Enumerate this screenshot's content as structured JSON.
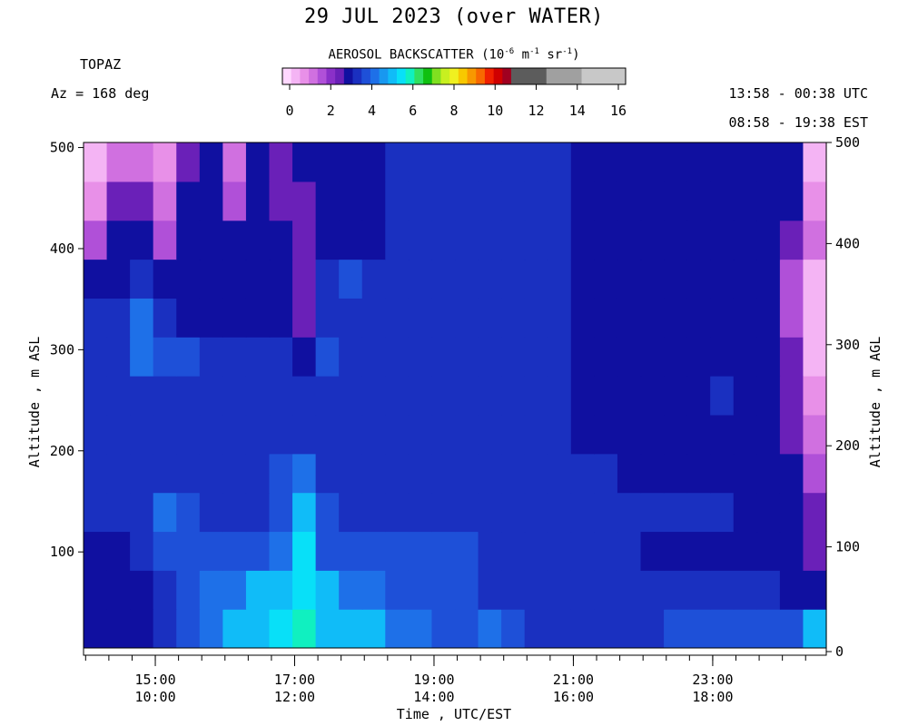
{
  "header": {
    "title": "29 JUL 2023 (over WATER)",
    "site": "TOPAZ",
    "azimuth": "Az = 168 deg",
    "utc_range": "13:58 - 00:38 UTC",
    "est_range": "08:58 - 19:38 EST"
  },
  "colorbar": {
    "title_main": "AEROSOL BACKSCATTER (10",
    "title_exp1": "-6",
    "title_mid": " m",
    "title_exp2": "-1",
    "title_mid2": " sr",
    "title_exp3": "-1",
    "title_end": ")",
    "ticks": [
      "0",
      "2",
      "4",
      "6",
      "8",
      "10",
      "12",
      "14",
      "16"
    ],
    "range": [
      0,
      16
    ],
    "colors": [
      "#ffd8ff",
      "#f4b4f4",
      "#e890e8",
      "#d070e0",
      "#b050d8",
      "#8a30c8",
      "#6a20b8",
      "#1010a0",
      "#1a30c0",
      "#1e50d8",
      "#1e70e8",
      "#1898f0",
      "#10bcf8",
      "#08e0f8",
      "#10f0c0",
      "#30e060",
      "#10c010",
      "#80e020",
      "#c8f020",
      "#f0f020",
      "#f8c800",
      "#f89800",
      "#f86800",
      "#f02000",
      "#d00000",
      "#a00020",
      "#5c5c5c",
      "#5c5c5c",
      "#5c5c5c",
      "#5c5c5c",
      "#a0a0a0",
      "#a0a0a0",
      "#a0a0a0",
      "#a0a0a0",
      "#c8c8c8",
      "#c8c8c8",
      "#c8c8c8",
      "#c8c8c8",
      "#c8c8c8"
    ]
  },
  "chart_data": {
    "type": "heatmap",
    "title": "29 JUL 2023 (over WATER)",
    "xlabel": "Time , UTC/EST",
    "ylabel_left": "Altitude , m ASL",
    "ylabel_right": "Altitude , m AGL",
    "x_ticks_utc": [
      "15:00",
      "17:00",
      "19:00",
      "21:00",
      "23:00"
    ],
    "x_ticks_est": [
      "10:00",
      "12:00",
      "14:00",
      "16:00",
      "18:00"
    ],
    "x_tick_hours": [
      15,
      17,
      19,
      21,
      23
    ],
    "x_range_hours": [
      13.97,
      24.63
    ],
    "y_ticks_left": [
      "100",
      "200",
      "300",
      "400",
      "500"
    ],
    "y_ticks_right": [
      "0",
      "100",
      "200",
      "300",
      "400",
      "500"
    ],
    "y_range_m": [
      5,
      505
    ],
    "value_units": "10^-6 m^-1 sr^-1",
    "time_columns_utc": [
      "13:59",
      "14:18",
      "14:38",
      "14:58",
      "15:18",
      "15:38",
      "15:58",
      "16:18",
      "16:38",
      "16:58",
      "17:18",
      "17:38",
      "17:58",
      "18:18",
      "18:38",
      "18:58",
      "19:18",
      "19:38",
      "19:58",
      "20:18",
      "20:38",
      "20:58",
      "21:18",
      "21:38",
      "21:58",
      "22:18",
      "22:38",
      "22:58",
      "23:18",
      "23:38",
      "23:58",
      "00:18"
    ],
    "altitude_bins_m": [
      20,
      60,
      100,
      140,
      180,
      220,
      260,
      300,
      340,
      380,
      420,
      460,
      500
    ],
    "values": [
      [
        3.0,
        3.0,
        3.0,
        3.5,
        4.0,
        4.5,
        5.0,
        5.0,
        5.5,
        6.0,
        5.0,
        5.0,
        5.0,
        4.5,
        4.5,
        4.0,
        4.0,
        4.5,
        4.0,
        3.5,
        3.5,
        3.5,
        3.5,
        3.5,
        3.5,
        4.0,
        4.0,
        4.0,
        4.0,
        4.0,
        4.0,
        5.0
      ],
      [
        3.0,
        3.0,
        3.0,
        3.5,
        4.0,
        4.5,
        4.5,
        5.0,
        5.0,
        5.5,
        5.0,
        4.5,
        4.5,
        4.0,
        4.0,
        4.0,
        4.0,
        3.5,
        3.5,
        3.5,
        3.5,
        3.5,
        3.5,
        3.5,
        3.5,
        3.5,
        3.5,
        3.5,
        3.5,
        3.5,
        3.0,
        3.0
      ],
      [
        3.0,
        3.0,
        3.5,
        4.0,
        4.0,
        4.0,
        4.0,
        4.0,
        4.5,
        5.5,
        4.0,
        4.0,
        4.0,
        4.0,
        4.0,
        4.0,
        4.0,
        3.5,
        3.5,
        3.5,
        3.5,
        3.5,
        3.5,
        3.5,
        3.0,
        3.0,
        3.0,
        3.0,
        3.0,
        3.0,
        3.0,
        2.5
      ],
      [
        3.5,
        3.5,
        3.5,
        4.5,
        4.0,
        3.5,
        3.5,
        3.5,
        4.0,
        5.0,
        4.0,
        3.5,
        3.5,
        3.5,
        3.5,
        3.5,
        3.5,
        3.5,
        3.5,
        3.5,
        3.5,
        3.5,
        3.5,
        3.5,
        3.5,
        3.5,
        3.5,
        3.5,
        3.0,
        3.0,
        3.0,
        2.5
      ],
      [
        3.5,
        3.5,
        3.5,
        3.5,
        3.5,
        3.5,
        3.5,
        3.5,
        4.0,
        4.5,
        3.5,
        3.5,
        3.5,
        3.5,
        3.5,
        3.5,
        3.5,
        3.5,
        3.5,
        3.5,
        3.5,
        3.5,
        3.5,
        3.0,
        3.0,
        3.0,
        3.0,
        3.0,
        3.0,
        3.0,
        3.0,
        2.0
      ],
      [
        3.5,
        3.5,
        3.5,
        3.5,
        3.5,
        3.5,
        3.5,
        3.5,
        3.5,
        3.5,
        3.5,
        3.5,
        3.5,
        3.5,
        3.5,
        3.5,
        3.5,
        3.5,
        3.5,
        3.5,
        3.5,
        3.0,
        3.0,
        3.0,
        3.0,
        3.0,
        3.0,
        3.0,
        3.0,
        3.0,
        2.5,
        1.5
      ],
      [
        3.5,
        3.5,
        3.5,
        3.5,
        3.5,
        3.5,
        3.5,
        3.5,
        3.5,
        3.5,
        3.5,
        3.5,
        3.5,
        3.5,
        3.5,
        3.5,
        3.5,
        3.5,
        3.5,
        3.5,
        3.5,
        3.0,
        3.0,
        3.0,
        3.0,
        3.0,
        3.0,
        3.5,
        3.0,
        3.0,
        2.5,
        1.0
      ],
      [
        3.5,
        3.5,
        4.5,
        4.0,
        4.0,
        3.5,
        3.5,
        3.5,
        3.5,
        3.0,
        4.0,
        3.5,
        3.5,
        3.5,
        3.5,
        3.5,
        3.5,
        3.5,
        3.5,
        3.5,
        3.5,
        3.0,
        3.0,
        3.0,
        3.0,
        3.0,
        3.0,
        3.0,
        3.0,
        3.0,
        2.5,
        0.5
      ],
      [
        3.5,
        3.5,
        4.5,
        3.5,
        3.0,
        3.0,
        3.0,
        3.0,
        3.0,
        2.5,
        3.5,
        3.5,
        3.5,
        3.5,
        3.5,
        3.5,
        3.5,
        3.5,
        3.5,
        3.5,
        3.5,
        3.0,
        3.0,
        3.0,
        3.0,
        3.0,
        3.0,
        3.0,
        3.0,
        3.0,
        2.0,
        0.5
      ],
      [
        3.0,
        3.0,
        3.5,
        3.0,
        3.0,
        3.0,
        3.0,
        3.0,
        3.0,
        2.5,
        3.5,
        4.0,
        3.5,
        3.5,
        3.5,
        3.5,
        3.5,
        3.5,
        3.5,
        3.5,
        3.5,
        3.0,
        3.0,
        3.0,
        3.0,
        3.0,
        3.0,
        3.0,
        3.0,
        3.0,
        2.0,
        0.5
      ],
      [
        2.0,
        3.0,
        3.0,
        2.0,
        3.0,
        3.0,
        3.0,
        3.0,
        3.0,
        2.5,
        3.0,
        3.0,
        3.0,
        3.5,
        3.5,
        3.5,
        3.5,
        3.5,
        3.5,
        3.5,
        3.5,
        3.0,
        3.0,
        3.0,
        3.0,
        3.0,
        3.0,
        3.0,
        3.0,
        3.0,
        2.5,
        1.5
      ],
      [
        1.0,
        2.5,
        2.5,
        1.5,
        3.0,
        3.0,
        2.0,
        3.0,
        2.5,
        2.5,
        3.0,
        3.0,
        3.0,
        3.5,
        3.5,
        3.5,
        3.5,
        3.5,
        3.5,
        3.5,
        3.5,
        3.0,
        3.0,
        3.0,
        3.0,
        3.0,
        3.0,
        3.0,
        3.0,
        3.0,
        3.0,
        1.0
      ],
      [
        0.8,
        1.5,
        1.5,
        1.0,
        2.5,
        3.0,
        1.5,
        3.0,
        2.5,
        3.0,
        3.0,
        3.0,
        3.0,
        3.5,
        3.5,
        3.5,
        3.5,
        3.5,
        3.5,
        3.5,
        3.5,
        3.0,
        3.0,
        3.0,
        3.0,
        3.0,
        3.0,
        3.0,
        3.0,
        3.0,
        3.0,
        0.5
      ]
    ]
  }
}
